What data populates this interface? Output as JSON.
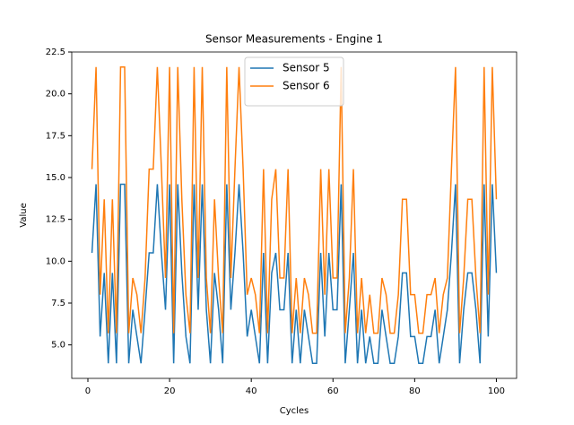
{
  "chart_data": {
    "type": "line",
    "title": "Sensor Measurements - Engine 1",
    "xlabel": "Cycles",
    "ylabel": "Value",
    "x": [
      1,
      2,
      3,
      4,
      5,
      6,
      7,
      8,
      9,
      10,
      11,
      12,
      13,
      14,
      15,
      16,
      17,
      18,
      19,
      20,
      21,
      22,
      23,
      24,
      25,
      26,
      27,
      28,
      29,
      30,
      31,
      32,
      33,
      34,
      35,
      36,
      37,
      38,
      39,
      40,
      41,
      42,
      43,
      44,
      45,
      46,
      47,
      48,
      49,
      50,
      51,
      52,
      53,
      54,
      55,
      56,
      57,
      58,
      59,
      60,
      61,
      62,
      63,
      64,
      65,
      66,
      67,
      68,
      69,
      70,
      71,
      72,
      73,
      74,
      75,
      76,
      77,
      78,
      79,
      80,
      81,
      82,
      83,
      84,
      85,
      86,
      87,
      88,
      89,
      90,
      91,
      92,
      93,
      94,
      95,
      96,
      97,
      98,
      99,
      100
    ],
    "series": [
      {
        "name": "Sensor 5",
        "color": "#1f77b4",
        "values": [
          10.5,
          14.6,
          5.5,
          9.3,
          3.9,
          9.3,
          3.9,
          14.6,
          14.6,
          3.9,
          7.1,
          5.5,
          3.9,
          7.1,
          10.5,
          10.5,
          14.6,
          10.5,
          7.1,
          14.6,
          3.9,
          14.6,
          9.3,
          5.5,
          3.9,
          14.6,
          7.1,
          14.6,
          7.1,
          3.9,
          9.3,
          7.1,
          3.9,
          14.6,
          7.1,
          10.5,
          14.6,
          10.5,
          5.5,
          7.1,
          5.5,
          3.9,
          10.5,
          3.9,
          9.3,
          10.5,
          7.1,
          7.1,
          10.5,
          3.9,
          7.1,
          3.9,
          7.1,
          5.5,
          3.9,
          3.9,
          10.5,
          5.5,
          10.5,
          7.1,
          7.1,
          14.6,
          3.9,
          7.1,
          10.5,
          3.9,
          7.1,
          3.9,
          5.5,
          3.9,
          3.9,
          7.1,
          5.5,
          3.9,
          3.9,
          5.5,
          9.3,
          9.3,
          5.5,
          5.5,
          3.9,
          3.9,
          5.5,
          5.5,
          7.1,
          3.9,
          5.5,
          7.1,
          10.5,
          14.6,
          3.9,
          7.1,
          9.3,
          9.3,
          7.1,
          3.9,
          14.6,
          5.5,
          14.6,
          9.3
        ]
      },
      {
        "name": "Sensor 6",
        "color": "#ff7f0e",
        "values": [
          15.5,
          21.6,
          8.0,
          13.7,
          5.7,
          13.7,
          5.7,
          21.6,
          21.6,
          5.7,
          9.0,
          8.0,
          5.7,
          9.0,
          15.5,
          15.5,
          21.6,
          15.5,
          9.0,
          21.6,
          5.7,
          21.6,
          13.7,
          8.0,
          5.7,
          21.6,
          9.0,
          21.6,
          9.0,
          5.7,
          13.7,
          9.0,
          5.7,
          21.6,
          9.0,
          15.5,
          21.6,
          15.5,
          8.0,
          9.0,
          8.0,
          5.7,
          15.5,
          5.7,
          13.7,
          15.5,
          9.0,
          9.0,
          15.5,
          5.7,
          9.0,
          5.7,
          9.0,
          8.0,
          5.7,
          5.7,
          15.5,
          8.0,
          15.5,
          9.0,
          9.0,
          21.6,
          5.7,
          9.0,
          15.5,
          5.7,
          9.0,
          5.7,
          8.0,
          5.7,
          5.7,
          9.0,
          8.0,
          5.7,
          5.7,
          8.0,
          13.7,
          13.7,
          8.0,
          8.0,
          5.7,
          5.7,
          8.0,
          8.0,
          9.0,
          5.7,
          8.0,
          9.0,
          15.5,
          21.6,
          5.7,
          9.0,
          13.7,
          13.7,
          9.0,
          5.7,
          21.6,
          8.0,
          21.6,
          13.7
        ]
      }
    ],
    "xlim": [
      -3.95,
      104.95
    ],
    "xticks": [
      0,
      20,
      40,
      60,
      80,
      100
    ],
    "ylim": [
      3.0,
      22.5
    ],
    "yticks": [
      {
        "value": 5.0,
        "label": "5.0"
      },
      7.5,
      {
        "value": 10.0,
        "label": "10.0"
      },
      12.5,
      {
        "value": 15.0,
        "label": "15.0"
      },
      17.5,
      {
        "value": 20.0,
        "label": "20.0"
      },
      22.5
    ],
    "legend": "upper center"
  }
}
